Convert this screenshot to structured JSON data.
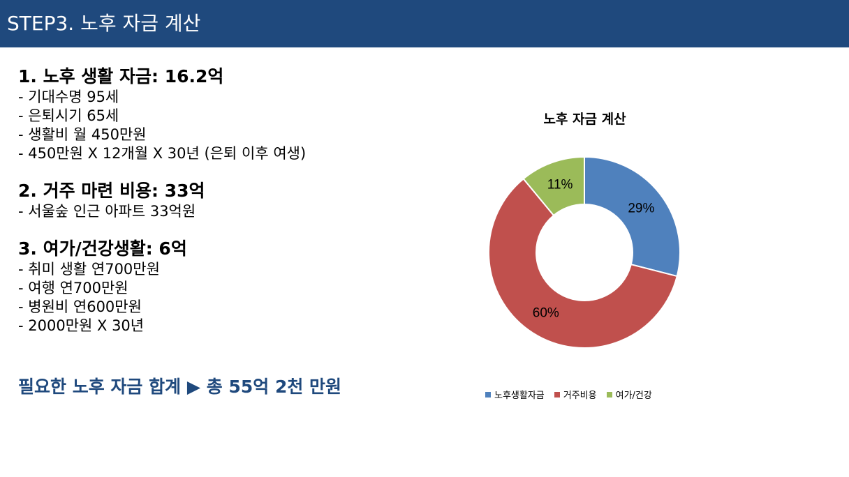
{
  "header": {
    "title": "STEP3. 노후 자금 계산"
  },
  "sections": [
    {
      "heading": "1. 노후 생활 자금: 16.2억",
      "items": [
        "- 기대수명 95세",
        "- 은퇴시기 65세",
        "- 생활비 월 450만원",
        "- 450만원 X 12개월 X 30년 (은퇴 이후 여생)"
      ]
    },
    {
      "heading": "2. 거주 마련 비용: 33억",
      "items": [
        "- 서울숲 인근 아파트 33억원"
      ]
    },
    {
      "heading": "3. 여가/건강생활: 6억",
      "items": [
        "- 취미 생활 연700만원",
        "- 여행 연700만원",
        "- 병원비 연600만원",
        "- 2000만원 X 30년"
      ]
    }
  ],
  "summary": "필요한 노후 자금 합계 ▶ 총 55억 2천 만원",
  "chart_data": {
    "type": "pie",
    "subtype": "donut",
    "title": "노후 자금 계산",
    "categories": [
      "노후생활자금",
      "거주비용",
      "여가/건강"
    ],
    "values": [
      29,
      60,
      11
    ],
    "data_labels": [
      "29%",
      "60%",
      "11%"
    ],
    "colors": [
      "#4f81bd",
      "#c0504d",
      "#9bbb59"
    ],
    "legend_position": "bottom"
  }
}
